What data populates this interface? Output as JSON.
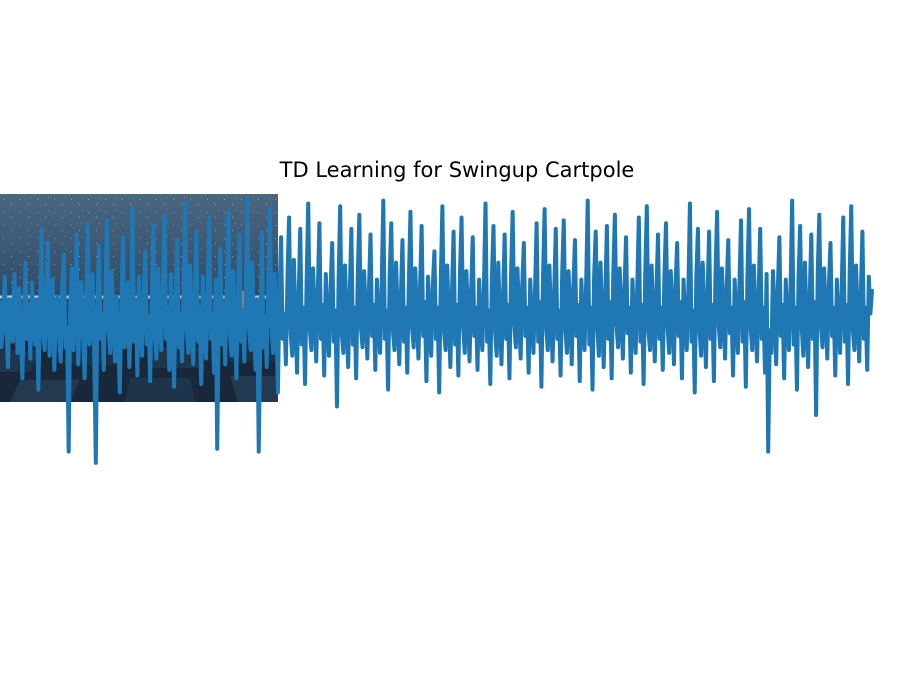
{
  "chart_data": {
    "type": "line",
    "title": "TD Learning for Swingup Cartpole",
    "xlabel": "",
    "ylabel": "",
    "axes_visible": false,
    "grid": false,
    "legend": "none",
    "series": [
      {
        "color": "#1f77b4",
        "x_start": 0,
        "x_step": 1,
        "values": [
          0.62,
          0.46,
          0.58,
          0.71,
          0.52,
          0.39,
          0.63,
          0.55,
          0.48,
          0.72,
          0.6,
          0.44,
          0.67,
          0.53,
          0.35,
          0.58,
          0.76,
          0.49,
          0.61,
          0.42,
          0.69,
          0.54,
          0.47,
          0.63,
          0.31,
          0.57,
          0.88,
          0.51,
          0.45,
          0.66,
          0.83,
          0.43,
          0.56,
          0.7,
          0.38,
          0.59,
          0.64,
          0.5,
          0.41,
          0.68,
          0.79,
          0.46,
          0.53,
          0.09,
          0.62,
          0.74,
          0.45,
          0.57,
          0.86,
          0.4,
          0.58,
          0.69,
          0.51,
          0.35,
          0.63,
          0.9,
          0.47,
          0.55,
          0.72,
          0.43,
          0.05,
          0.61,
          0.82,
          0.49,
          0.58,
          0.38,
          0.67,
          0.91,
          0.52,
          0.44,
          0.73,
          0.57,
          0.41,
          0.64,
          0.5,
          0.3,
          0.6,
          0.85,
          0.46,
          0.55,
          0.69,
          0.39,
          0.58,
          0.95,
          0.48,
          0.62,
          0.36,
          0.71,
          0.53,
          0.43,
          0.66,
          0.8,
          0.47,
          0.57,
          0.34,
          0.61,
          0.89,
          0.5,
          0.42,
          0.74,
          0.55,
          0.45,
          0.67,
          0.93,
          0.49,
          0.6,
          0.38,
          0.72,
          0.52,
          0.32,
          0.63,
          0.84,
          0.46,
          0.58,
          0.41,
          0.68,
          0.97,
          0.51,
          0.44,
          0.75,
          0.56,
          0.4,
          0.65,
          0.87,
          0.48,
          0.6,
          0.33,
          0.71,
          0.53,
          0.42,
          0.66,
          0.92,
          0.49,
          0.58,
          0.37,
          0.7,
          0.1,
          0.55,
          0.81,
          0.47,
          0.62,
          0.4,
          0.68,
          0.94,
          0.5,
          0.43,
          0.73,
          0.56,
          0.35,
          0.64,
          0.86,
          0.48,
          0.59,
          0.41,
          0.7,
          0.99,
          0.52,
          0.45,
          0.76,
          0.55,
          0.38,
          0.63,
          0.09,
          0.5,
          0.87,
          0.46,
          0.57,
          0.39,
          0.69,
          0.95,
          0.53,
          0.44,
          0.72,
          0.6,
          0.3,
          0.65,
          0.85,
          0.49,
          0.58,
          0.4,
          0.71,
          0.92,
          0.51,
          0.43,
          0.77,
          0.56,
          0.37,
          0.64,
          0.88,
          0.47,
          0.6,
          0.33,
          0.7,
          0.97,
          0.52,
          0.45,
          0.74,
          0.58,
          0.41,
          0.66,
          0.9,
          0.49,
          0.61,
          0.36,
          0.72,
          0.54,
          0.43,
          0.67,
          0.83,
          0.48,
          0.59,
          0.25,
          0.7,
          0.96,
          0.51,
          0.44,
          0.75,
          0.57,
          0.39,
          0.65,
          0.88,
          0.47,
          0.6,
          0.35,
          0.71,
          0.93,
          0.53,
          0.46,
          0.73,
          0.58,
          0.42,
          0.66,
          0.86,
          0.5,
          0.61,
          0.38,
          0.7,
          0.55,
          0.44,
          0.68,
          0.98,
          0.49,
          0.59,
          0.31,
          0.72,
          0.9,
          0.52,
          0.45,
          0.76,
          0.57,
          0.4,
          0.64,
          0.84,
          0.48,
          0.6,
          0.37,
          0.69,
          0.94,
          0.53,
          0.46,
          0.74,
          0.58,
          0.42,
          0.67,
          0.89,
          0.5,
          0.62,
          0.34,
          0.71,
          0.55,
          0.43,
          0.68,
          0.8,
          0.49,
          0.6,
          0.3,
          0.7,
          0.96,
          0.52,
          0.45,
          0.75,
          0.57,
          0.39,
          0.65,
          0.87,
          0.47,
          0.61,
          0.36,
          0.72,
          0.92,
          0.53,
          0.44,
          0.73,
          0.59,
          0.41,
          0.66,
          0.85,
          0.5,
          0.6,
          0.38,
          0.7,
          0.55,
          0.45,
          0.67,
          0.97,
          0.48,
          0.59,
          0.33,
          0.71,
          0.89,
          0.52,
          0.43,
          0.76,
          0.56,
          0.4,
          0.64,
          0.86,
          0.49,
          0.61,
          0.35,
          0.72,
          0.94,
          0.54,
          0.46,
          0.74,
          0.58,
          0.42,
          0.68,
          0.83,
          0.5,
          0.6,
          0.37,
          0.7,
          0.56,
          0.44,
          0.66,
          0.9,
          0.48,
          0.62,
          0.32,
          0.71,
          0.95,
          0.53,
          0.45,
          0.75,
          0.57,
          0.41,
          0.65,
          0.88,
          0.49,
          0.59,
          0.36,
          0.72,
          0.91,
          0.52,
          0.44,
          0.73,
          0.58,
          0.4,
          0.67,
          0.84,
          0.5,
          0.61,
          0.34,
          0.7,
          0.55,
          0.45,
          0.68,
          0.98,
          0.47,
          0.6,
          0.31,
          0.71,
          0.87,
          0.53,
          0.43,
          0.76,
          0.57,
          0.39,
          0.64,
          0.89,
          0.49,
          0.62,
          0.35,
          0.72,
          0.93,
          0.54,
          0.46,
          0.74,
          0.59,
          0.42,
          0.66,
          0.85,
          0.51,
          0.6,
          0.37,
          0.7,
          0.56,
          0.44,
          0.67,
          0.92,
          0.48,
          0.61,
          0.33,
          0.72,
          0.96,
          0.52,
          0.45,
          0.75,
          0.57,
          0.41,
          0.65,
          0.86,
          0.49,
          0.6,
          0.38,
          0.71,
          0.9,
          0.53,
          0.44,
          0.73,
          0.58,
          0.4,
          0.68,
          0.83,
          0.5,
          0.62,
          0.35,
          0.7,
          0.55,
          0.45,
          0.66,
          0.97,
          0.48,
          0.59,
          0.3,
          0.71,
          0.88,
          0.52,
          0.43,
          0.76,
          0.57,
          0.39,
          0.64,
          0.87,
          0.49,
          0.61,
          0.34,
          0.72,
          0.94,
          0.54,
          0.46,
          0.74,
          0.58,
          0.42,
          0.67,
          0.84,
          0.51,
          0.6,
          0.36,
          0.7,
          0.56,
          0.44,
          0.68,
          0.91,
          0.48,
          0.62,
          0.32,
          0.71,
          0.95,
          0.53,
          0.45,
          0.75,
          0.57,
          0.41,
          0.65,
          0.88,
          0.49,
          0.6,
          0.37,
          0.72,
          0.09,
          0.52,
          0.44,
          0.73,
          0.59,
          0.4,
          0.66,
          0.85,
          0.5,
          0.61,
          0.35,
          0.7,
          0.55,
          0.45,
          0.67,
          0.98,
          0.47,
          0.6,
          0.31,
          0.71,
          0.89,
          0.53,
          0.43,
          0.76,
          0.56,
          0.39,
          0.64,
          0.86,
          0.49,
          0.62,
          0.22,
          0.72,
          0.93,
          0.54,
          0.46,
          0.74,
          0.58,
          0.42,
          0.68,
          0.83,
          0.5,
          0.6,
          0.36,
          0.7,
          0.55,
          0.44,
          0.66,
          0.92,
          0.48,
          0.61,
          0.33,
          0.72,
          0.96,
          0.52,
          0.45,
          0.75,
          0.57,
          0.41,
          0.65,
          0.87,
          0.49,
          0.6,
          0.38,
          0.71,
          0.58,
          0.66
        ]
      }
    ]
  },
  "background_image": {
    "icon": "cartpole-scene-render",
    "sky_color": "#3d5873",
    "floor_color": "#18283a",
    "rail_color": "#b9cee3",
    "pole_color": "#d98f45"
  }
}
